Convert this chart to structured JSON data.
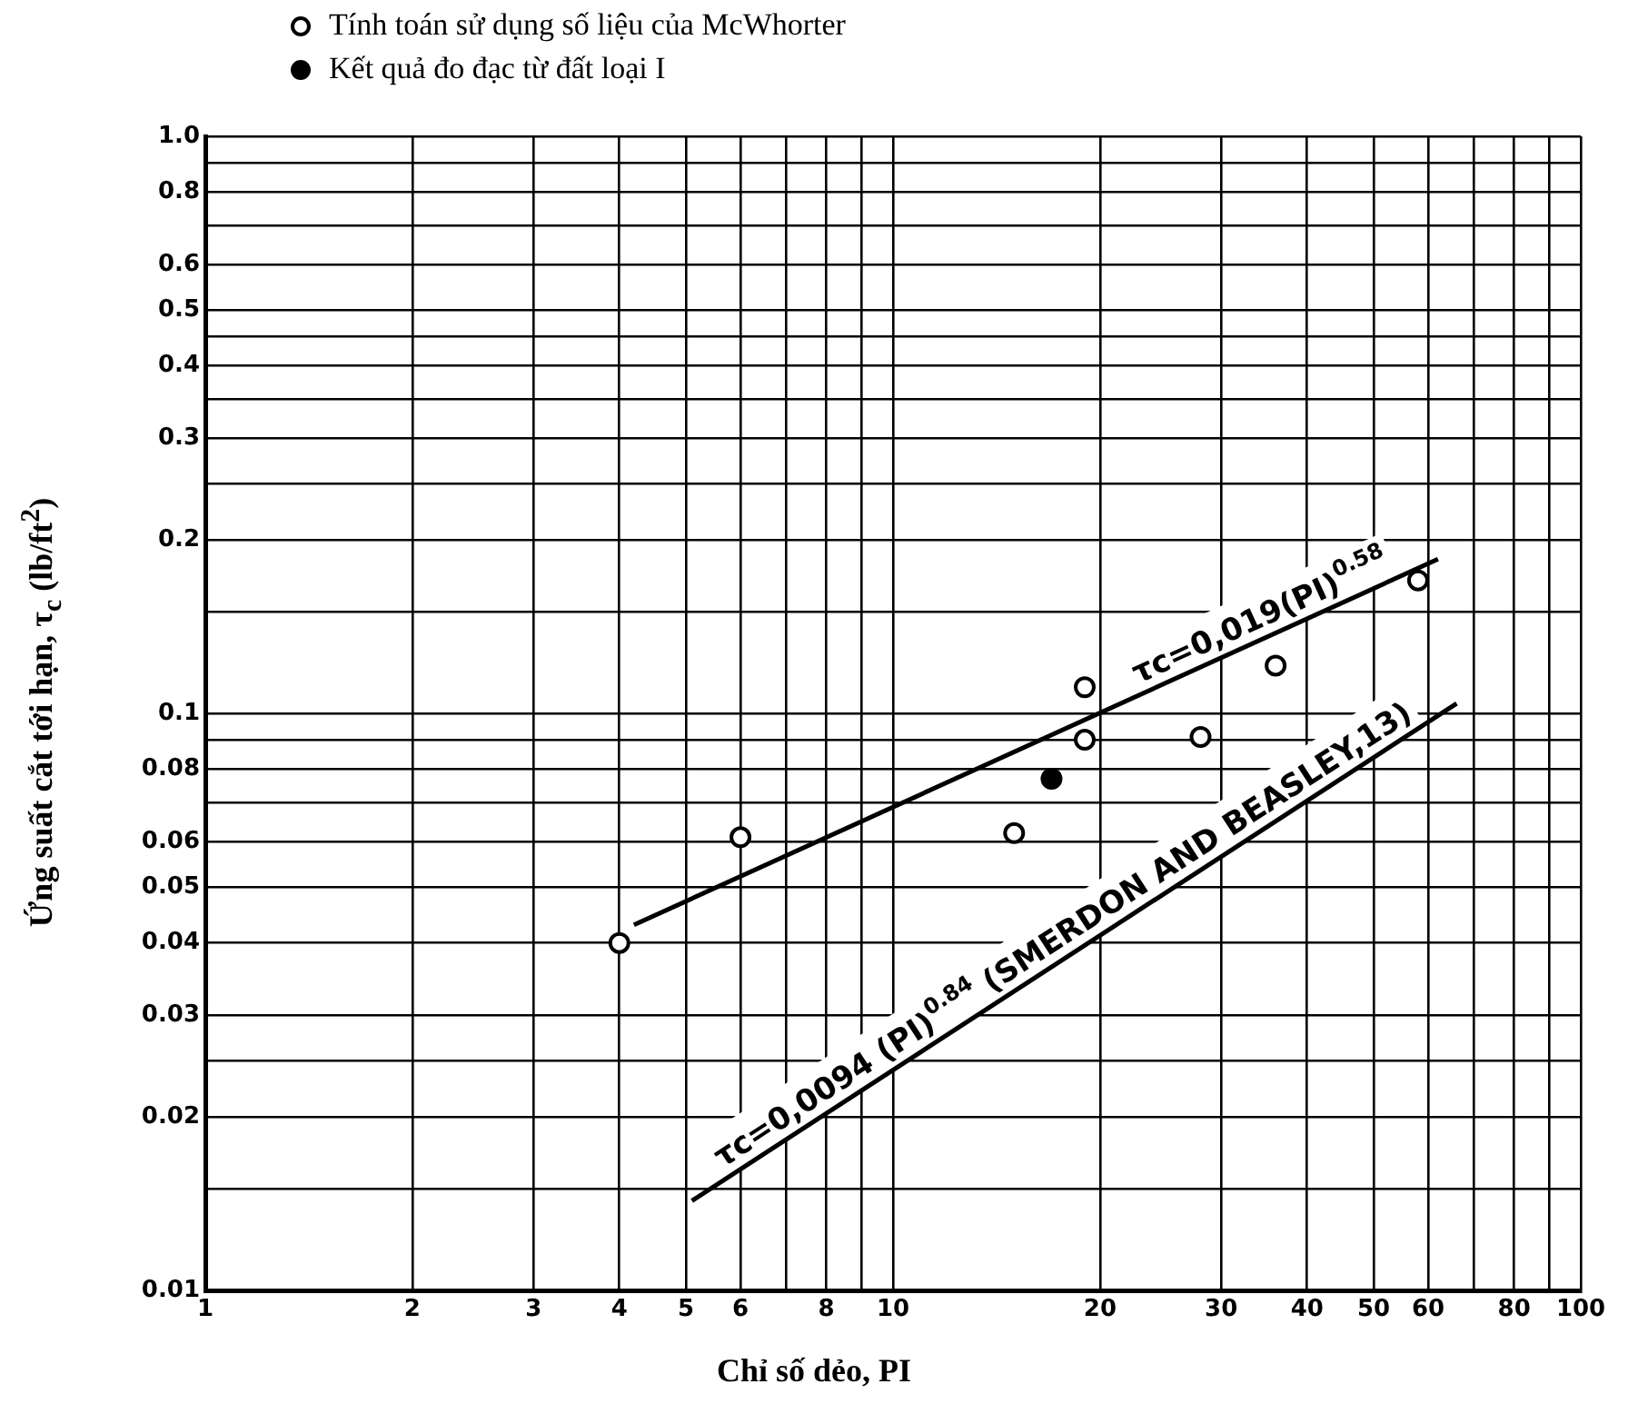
{
  "chart_data": {
    "type": "scatter",
    "xlabel": "Chỉ số dẻo, PI",
    "ylabel": "Ứng suất cắt tới hạn, τ$_{c}$ (lb/ft$^{2}$)",
    "log": "xy",
    "grid": true,
    "legend": "top",
    "marker": "circle",
    "xlim": [
      1,
      100
    ],
    "ylim": [
      0.01,
      1
    ],
    "xticks": [
      1,
      2,
      3,
      4,
      5,
      6,
      {
        "value": 7,
        "label": null
      },
      8,
      {
        "value": 9,
        "label": null
      },
      10,
      20,
      30,
      40,
      50,
      60,
      {
        "value": 70,
        "label": null
      },
      80,
      {
        "value": 90,
        "label": null
      },
      100
    ],
    "yticks": [
      0.01,
      {
        "value": 0.015,
        "label": null
      },
      0.02,
      {
        "value": 0.025,
        "label": null
      },
      0.03,
      0.04,
      0.05,
      0.06,
      {
        "value": 0.07,
        "label": null
      },
      0.08,
      {
        "value": 0.09,
        "label": null
      },
      0.1,
      {
        "value": 0.15,
        "label": null
      },
      0.2,
      {
        "value": 0.25,
        "label": null
      },
      0.3,
      {
        "value": 0.35,
        "label": null
      },
      0.4,
      {
        "value": 0.45,
        "label": null
      },
      0.5,
      0.6,
      {
        "value": 0.7,
        "label": null
      },
      0.8,
      {
        "value": 0.9,
        "label": null
      },
      {
        "value": 1,
        "label": "1.0"
      }
    ],
    "series": [
      {
        "name": "Tính toán sử dụng số liệu của McWhorter",
        "color": "#000000",
        "x": [
          4,
          6,
          15,
          19,
          19,
          28,
          36,
          58
        ],
        "values": [
          0.04,
          0.061,
          0.062,
          0.111,
          0.09,
          0.091,
          0.121,
          0.17
        ]
      },
      {
        "name": "Kết quả đo đạc từ đất loại I",
        "color": "#000000",
        "x": [
          17
        ],
        "values": [
          0.077
        ]
      },
      {
        "type": "line",
        "marker": "none",
        "color": "#000000",
        "x": [
          4.2,
          62
        ],
        "values": [
          0.043,
          0.185
        ]
      },
      {
        "type": "line",
        "marker": "none",
        "color": "#000000",
        "x": [
          5.1,
          66
        ],
        "values": [
          0.0143,
          0.104
        ]
      }
    ],
    "annotations": [
      "τc=0,019(PI)$^{0.58}$",
      "τc=0,0094 (PI)$^{0.84}$ (SMERDON AND BEASLEY,13)"
    ]
  }
}
